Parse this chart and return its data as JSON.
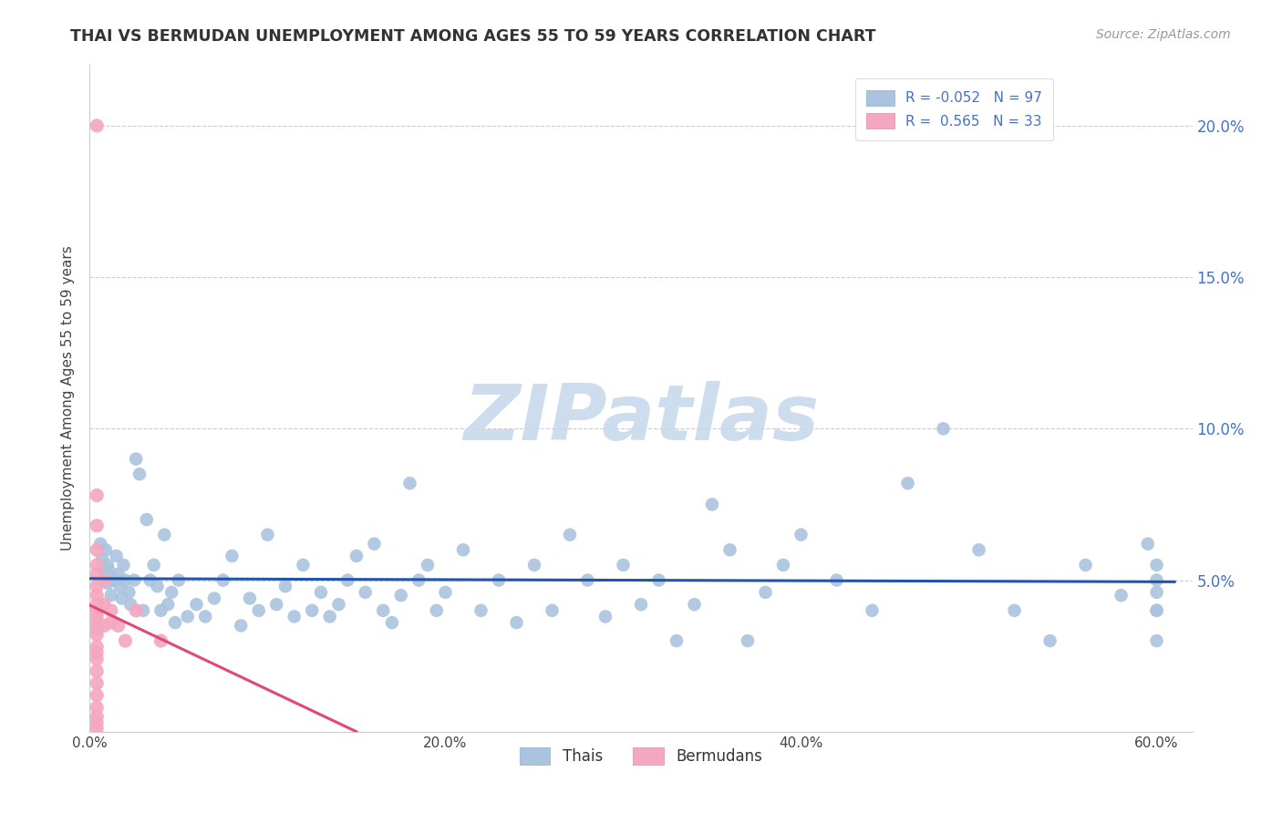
{
  "title": "THAI VS BERMUDAN UNEMPLOYMENT AMONG AGES 55 TO 59 YEARS CORRELATION CHART",
  "source": "Source: ZipAtlas.com",
  "ylabel": "Unemployment Among Ages 55 to 59 years",
  "xlim": [
    0.0,
    0.62
  ],
  "ylim": [
    0.0,
    0.22
  ],
  "xticks": [
    0.0,
    0.1,
    0.2,
    0.3,
    0.4,
    0.5,
    0.6
  ],
  "xticklabels": [
    "0.0%",
    "",
    "20.0%",
    "",
    "40.0%",
    "",
    "60.0%"
  ],
  "yticks": [
    0.05,
    0.1,
    0.15,
    0.2
  ],
  "yticklabels": [
    "5.0%",
    "10.0%",
    "15.0%",
    "20.0%"
  ],
  "thai_color": "#aac4de",
  "bermudan_color": "#f4a7be",
  "thai_line_color": "#2255aa",
  "bermudan_line_color": "#e04878",
  "R_thai": -0.052,
  "N_thai": 97,
  "R_bermudan": 0.565,
  "N_bermudan": 33,
  "grid_color": "#cccccc",
  "watermark_text": "ZIPatlas",
  "watermark_color": "#c5d8ec",
  "thai_x": [
    0.006,
    0.007,
    0.008,
    0.009,
    0.01,
    0.01,
    0.011,
    0.012,
    0.014,
    0.015,
    0.016,
    0.017,
    0.018,
    0.019,
    0.02,
    0.022,
    0.023,
    0.025,
    0.026,
    0.028,
    0.03,
    0.032,
    0.034,
    0.036,
    0.038,
    0.04,
    0.042,
    0.044,
    0.046,
    0.048,
    0.05,
    0.055,
    0.06,
    0.065,
    0.07,
    0.075,
    0.08,
    0.085,
    0.09,
    0.095,
    0.1,
    0.105,
    0.11,
    0.115,
    0.12,
    0.125,
    0.13,
    0.135,
    0.14,
    0.145,
    0.15,
    0.155,
    0.16,
    0.165,
    0.17,
    0.175,
    0.18,
    0.185,
    0.19,
    0.195,
    0.2,
    0.21,
    0.22,
    0.23,
    0.24,
    0.25,
    0.26,
    0.27,
    0.28,
    0.29,
    0.3,
    0.31,
    0.32,
    0.33,
    0.34,
    0.35,
    0.36,
    0.37,
    0.38,
    0.39,
    0.4,
    0.42,
    0.44,
    0.46,
    0.48,
    0.5,
    0.52,
    0.54,
    0.56,
    0.58,
    0.595,
    0.6,
    0.6,
    0.6,
    0.6,
    0.6,
    0.6
  ],
  "thai_y": [
    0.062,
    0.057,
    0.053,
    0.06,
    0.055,
    0.049,
    0.053,
    0.045,
    0.05,
    0.058,
    0.052,
    0.048,
    0.044,
    0.055,
    0.05,
    0.046,
    0.042,
    0.05,
    0.09,
    0.085,
    0.04,
    0.07,
    0.05,
    0.055,
    0.048,
    0.04,
    0.065,
    0.042,
    0.046,
    0.036,
    0.05,
    0.038,
    0.042,
    0.038,
    0.044,
    0.05,
    0.058,
    0.035,
    0.044,
    0.04,
    0.065,
    0.042,
    0.048,
    0.038,
    0.055,
    0.04,
    0.046,
    0.038,
    0.042,
    0.05,
    0.058,
    0.046,
    0.062,
    0.04,
    0.036,
    0.045,
    0.082,
    0.05,
    0.055,
    0.04,
    0.046,
    0.06,
    0.04,
    0.05,
    0.036,
    0.055,
    0.04,
    0.065,
    0.05,
    0.038,
    0.055,
    0.042,
    0.05,
    0.03,
    0.042,
    0.075,
    0.06,
    0.03,
    0.046,
    0.055,
    0.065,
    0.05,
    0.04,
    0.082,
    0.1,
    0.06,
    0.04,
    0.03,
    0.055,
    0.045,
    0.062,
    0.04,
    0.04,
    0.055,
    0.03,
    0.046,
    0.05
  ],
  "bermudan_x": [
    0.004,
    0.004,
    0.004,
    0.004,
    0.004,
    0.004,
    0.004,
    0.004,
    0.004,
    0.004,
    0.004,
    0.004,
    0.004,
    0.004,
    0.004,
    0.004,
    0.004,
    0.004,
    0.004,
    0.004,
    0.004,
    0.004,
    0.004,
    0.004,
    0.008,
    0.008,
    0.008,
    0.012,
    0.012,
    0.016,
    0.02,
    0.026,
    0.04
  ],
  "bermudan_y": [
    0.2,
    0.078,
    0.068,
    0.06,
    0.055,
    0.052,
    0.048,
    0.045,
    0.042,
    0.04,
    0.038,
    0.036,
    0.034,
    0.032,
    0.028,
    0.026,
    0.024,
    0.02,
    0.016,
    0.012,
    0.008,
    0.005,
    0.003,
    0.001,
    0.05,
    0.042,
    0.035,
    0.04,
    0.036,
    0.035,
    0.03,
    0.04,
    0.03
  ]
}
